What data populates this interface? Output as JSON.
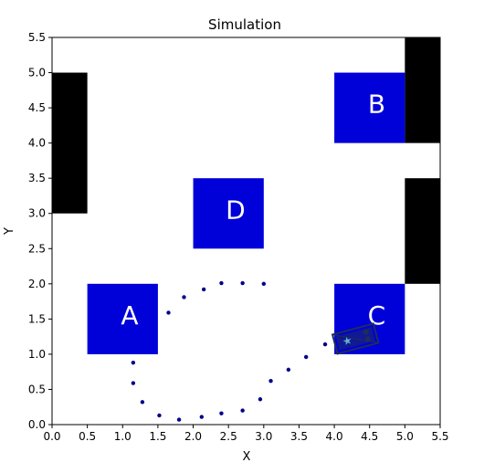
{
  "chart_data": {
    "type": "scatter",
    "title": "Simulation",
    "xlabel": "X",
    "ylabel": "Y",
    "xlim": [
      0,
      5.5
    ],
    "ylim": [
      0,
      5.5
    ],
    "xticks": [
      "0.0",
      "0.5",
      "1.0",
      "1.5",
      "2.0",
      "2.5",
      "3.0",
      "3.5",
      "4.0",
      "4.5",
      "5.0",
      "5.5"
    ],
    "yticks": [
      "0.0",
      "0.5",
      "1.0",
      "1.5",
      "2.0",
      "2.5",
      "3.0",
      "3.5",
      "4.0",
      "4.5",
      "5.0",
      "5.5"
    ],
    "grid": false,
    "obstacle_color": "#000000",
    "region_color": "#0000d9",
    "path_color": "#00008b",
    "obstacles": [
      {
        "x0": 0.0,
        "x1": 0.5,
        "y0": 3.0,
        "y1": 5.0
      },
      {
        "x0": 5.0,
        "x1": 5.5,
        "y0": 4.0,
        "y1": 5.5
      },
      {
        "x0": 5.0,
        "x1": 5.5,
        "y0": 2.0,
        "y1": 3.5
      }
    ],
    "regions": [
      {
        "label": "A",
        "x0": 0.5,
        "x1": 1.5,
        "y0": 1.0,
        "y1": 2.0,
        "label_x": 1.1,
        "label_y": 1.55
      },
      {
        "label": "B",
        "x0": 4.0,
        "x1": 5.0,
        "y0": 4.0,
        "y1": 5.0,
        "label_x": 4.6,
        "label_y": 4.55
      },
      {
        "label": "C",
        "x0": 4.0,
        "x1": 5.0,
        "y0": 1.0,
        "y1": 2.0,
        "label_x": 4.6,
        "label_y": 1.55
      },
      {
        "label": "D",
        "x0": 2.0,
        "x1": 3.0,
        "y0": 2.5,
        "y1": 3.5,
        "label_x": 2.6,
        "label_y": 3.05
      }
    ],
    "path": {
      "x": [
        3.0,
        2.7,
        2.4,
        2.15,
        1.87,
        1.65,
        1.15,
        1.15,
        1.28,
        1.52,
        1.8,
        2.12,
        2.4,
        2.7,
        2.95,
        3.1,
        3.35,
        3.6,
        3.87,
        4.1
      ],
      "y": [
        2.0,
        2.01,
        2.01,
        1.92,
        1.81,
        1.59,
        0.88,
        0.59,
        0.32,
        0.13,
        0.07,
        0.11,
        0.16,
        0.2,
        0.36,
        0.62,
        0.78,
        0.96,
        1.14,
        1.24
      ]
    },
    "robot": {
      "x": 4.3,
      "y": 1.22,
      "heading_deg": 15,
      "length": 0.6,
      "width": 0.28,
      "color": "#1f2d5a",
      "marker_color": "#5fb0d0"
    }
  }
}
